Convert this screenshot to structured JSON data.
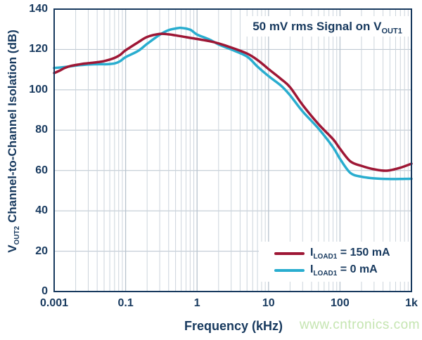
{
  "colors": {
    "axis": "#17395e",
    "grid_minor": "#ccd4dc",
    "grid_major": "#b8c3ce",
    "series_red": "#9e1735",
    "series_cyan": "#29adcf",
    "watermark": "#c5e5b1"
  },
  "watermark": "www.cntronics.com",
  "chart_data": {
    "type": "line",
    "annotation": {
      "pre": "50 mV rms Signal on V",
      "sub": "OUT1"
    },
    "xlabel": "Frequency (kHz)",
    "ylabel": {
      "pre": "V",
      "sub": "OUT2",
      "post": " Channel-to-Channel Isolation (dB)"
    },
    "x_axis": {
      "scale": "log",
      "tick_values": [
        0.001,
        0.1,
        1,
        10,
        100,
        1000
      ],
      "tick_labels": [
        "0.001",
        "0.1",
        "1",
        "10",
        "100",
        "1k"
      ],
      "minor_multiples": [
        2,
        3,
        4,
        5,
        6,
        7,
        8,
        9
      ]
    },
    "y_axis": {
      "min": 0,
      "max": 140,
      "tick_step": 20,
      "tick_labels": [
        "0",
        "20",
        "40",
        "60",
        "80",
        "100",
        "120",
        "140"
      ]
    },
    "grid": true,
    "legend": {
      "position": "bottom-right",
      "items": [
        {
          "pre": "I",
          "sub": "LOAD1",
          "post": " = 150 mA",
          "series": "ILOAD1 = 150 mA"
        },
        {
          "pre": "I",
          "sub": "LOAD1",
          "post": " = 0 mA",
          "series": "ILOAD1 = 0 mA"
        }
      ]
    },
    "series": [
      {
        "name": "ILOAD1 = 150 mA",
        "color": "#9e1735",
        "points": [
          [
            0.001,
            108.3
          ],
          [
            0.0015,
            109.7
          ],
          [
            0.002,
            110.9
          ],
          [
            0.003,
            111.9
          ],
          [
            0.005,
            112.6
          ],
          [
            0.007,
            113.0
          ],
          [
            0.01,
            113.3
          ],
          [
            0.02,
            113.9
          ],
          [
            0.03,
            114.6
          ],
          [
            0.05,
            115.9
          ],
          [
            0.07,
            117.3
          ],
          [
            0.1,
            119.6
          ],
          [
            0.15,
            123.6
          ],
          [
            0.2,
            126.2
          ],
          [
            0.3,
            127.7
          ],
          [
            0.4,
            127.5
          ],
          [
            0.5,
            127.0
          ],
          [
            0.7,
            126.1
          ],
          [
            1,
            125.2
          ],
          [
            1.5,
            124.1
          ],
          [
            2,
            123.0
          ],
          [
            3,
            121.0
          ],
          [
            5,
            118.0
          ],
          [
            7,
            114.8
          ],
          [
            10,
            110.3
          ],
          [
            15,
            105.3
          ],
          [
            20,
            101.3
          ],
          [
            30,
            92.5
          ],
          [
            50,
            83.0
          ],
          [
            80,
            75.5
          ],
          [
            100,
            70.8
          ],
          [
            140,
            64.5
          ],
          [
            200,
            62.3
          ],
          [
            300,
            60.6
          ],
          [
            450,
            59.9
          ],
          [
            700,
            61.4
          ],
          [
            1000,
            63.4
          ]
        ]
      },
      {
        "name": "ILOAD1 = 0 mA",
        "color": "#29adcf",
        "points": [
          [
            0.001,
            110.8
          ],
          [
            0.002,
            111.3
          ],
          [
            0.003,
            111.7
          ],
          [
            0.005,
            112.2
          ],
          [
            0.01,
            112.6
          ],
          [
            0.02,
            112.7
          ],
          [
            0.03,
            112.7
          ],
          [
            0.05,
            113.1
          ],
          [
            0.07,
            114.2
          ],
          [
            0.1,
            116.2
          ],
          [
            0.15,
            119.3
          ],
          [
            0.2,
            122.8
          ],
          [
            0.3,
            127.3
          ],
          [
            0.4,
            129.6
          ],
          [
            0.5,
            130.4
          ],
          [
            0.6,
            130.7
          ],
          [
            0.8,
            129.8
          ],
          [
            1,
            127.4
          ],
          [
            1.5,
            124.9
          ],
          [
            2,
            122.5
          ],
          [
            3,
            120.0
          ],
          [
            5,
            116.5
          ],
          [
            7,
            111.5
          ],
          [
            10,
            106.8
          ],
          [
            15,
            102.0
          ],
          [
            20,
            97.3
          ],
          [
            30,
            89.3
          ],
          [
            50,
            80.8
          ],
          [
            80,
            71.5
          ],
          [
            100,
            65.8
          ],
          [
            140,
            58.8
          ],
          [
            200,
            56.9
          ],
          [
            300,
            56.1
          ],
          [
            450,
            55.8
          ],
          [
            700,
            55.8
          ],
          [
            1000,
            55.9
          ]
        ]
      }
    ]
  }
}
